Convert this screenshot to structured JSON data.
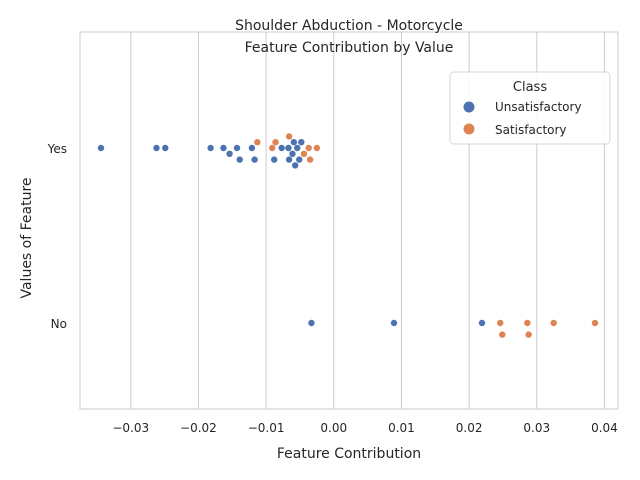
{
  "chart_data": {
    "type": "scatter",
    "title_lines": [
      "Shoulder Abduction - Motorcycle",
      "Feature Contribution by Value"
    ],
    "xlabel": "Feature Contribution",
    "ylabel": "Values of Feature",
    "xlim": [
      -0.0375,
      0.042
    ],
    "x_ticks": [
      -0.03,
      -0.02,
      -0.01,
      0.0,
      0.01,
      0.02,
      0.03,
      0.04
    ],
    "x_tick_labels": [
      "−0.03",
      "−0.02",
      "−0.01",
      "0.00",
      "0.01",
      "0.02",
      "0.03",
      "0.04"
    ],
    "categories": [
      "Yes",
      "No"
    ],
    "grid": true,
    "legend": {
      "title": "Class",
      "placement": "top-right",
      "entries": [
        {
          "label": "Unsatisfactory",
          "color": "#4c72b0"
        },
        {
          "label": "Satisfactory",
          "color": "#dd8452"
        }
      ]
    },
    "series": [
      {
        "name": "Unsatisfactory",
        "color": "#4c72b0",
        "points": [
          {
            "category": "Yes",
            "x": -0.0344
          },
          {
            "category": "Yes",
            "x": -0.0262
          },
          {
            "category": "Yes",
            "x": -0.0249
          },
          {
            "category": "Yes",
            "x": -0.0182
          },
          {
            "category": "Yes",
            "x": -0.0163
          },
          {
            "category": "Yes",
            "x": -0.0154
          },
          {
            "category": "Yes",
            "x": -0.0143
          },
          {
            "category": "Yes",
            "x": -0.0139
          },
          {
            "category": "Yes",
            "x": -0.0121
          },
          {
            "category": "Yes",
            "x": -0.0117
          },
          {
            "category": "Yes",
            "x": -0.0088
          },
          {
            "category": "Yes",
            "x": -0.0077
          },
          {
            "category": "Yes",
            "x": -0.0067
          },
          {
            "category": "Yes",
            "x": -0.0066
          },
          {
            "category": "Yes",
            "x": -0.0061
          },
          {
            "category": "Yes",
            "x": -0.0059
          },
          {
            "category": "Yes",
            "x": -0.0057
          },
          {
            "category": "Yes",
            "x": -0.0054
          },
          {
            "category": "Yes",
            "x": -0.0051
          },
          {
            "category": "Yes",
            "x": -0.0048
          },
          {
            "category": "No",
            "x": -0.0033
          },
          {
            "category": "No",
            "x": 0.0089
          },
          {
            "category": "No",
            "x": 0.0219
          }
        ]
      },
      {
        "name": "Satisfactory",
        "color": "#dd8452",
        "points": [
          {
            "category": "Yes",
            "x": -0.0113
          },
          {
            "category": "Yes",
            "x": -0.0091
          },
          {
            "category": "Yes",
            "x": -0.0086
          },
          {
            "category": "Yes",
            "x": -0.0066
          },
          {
            "category": "Yes",
            "x": -0.0044
          },
          {
            "category": "Yes",
            "x": -0.0037
          },
          {
            "category": "Yes",
            "x": -0.0035
          },
          {
            "category": "Yes",
            "x": -0.0025
          },
          {
            "category": "No",
            "x": 0.0246
          },
          {
            "category": "No",
            "x": 0.0249
          },
          {
            "category": "No",
            "x": 0.0286
          },
          {
            "category": "No",
            "x": 0.0288
          },
          {
            "category": "No",
            "x": 0.0325
          },
          {
            "category": "No",
            "x": 0.0386
          }
        ]
      }
    ]
  }
}
